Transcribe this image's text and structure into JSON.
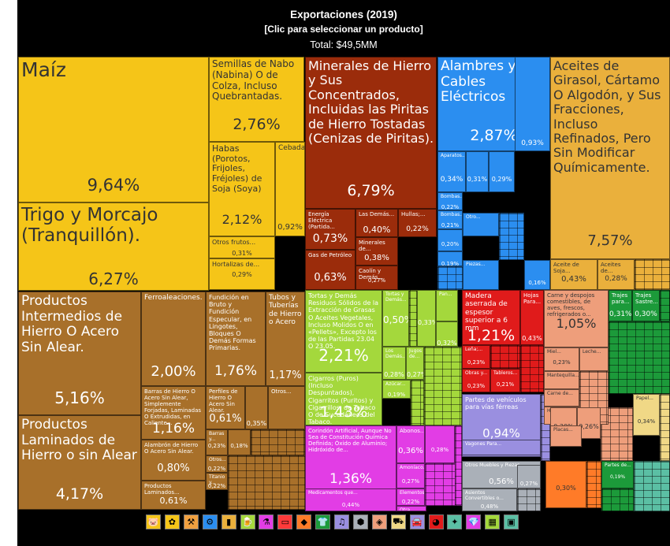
{
  "header": {
    "title": "Exportaciones (2019)",
    "subtitle": "[Clic para seleccionar un producto]",
    "total": "Total: $49,5MM"
  },
  "colors": {
    "vegetal": "#f5c518",
    "metales": "#a8702a",
    "minerales": "#9b2c0b",
    "maquinas": "#2b8ef0",
    "grasas": "#eab03c",
    "alimentos": "#a4d83c",
    "madera": "#e01b1b",
    "animal": "#ee9e7b",
    "quimicos": "#e23de5",
    "transporte": "#9a8fe0",
    "papel": "#f0d886",
    "instrumentos": "#aab0b8",
    "plasticos": "#ff7b28",
    "textiles": "#1c9a3a",
    "calzado": "#2dc57c",
    "otros": "#5bbfa4"
  },
  "chart_data": {
    "type": "treemap",
    "title": "Exportaciones (2019)",
    "subtitle": "[Clic para seleccionar un producto]",
    "total": "Total: $49,5MM",
    "items": [
      {
        "name": "Maíz",
        "value": "9,64%",
        "group": "vegetal"
      },
      {
        "name": "Trigo y Morcajo (Tranquillón).",
        "value": "6,27%",
        "group": "vegetal"
      },
      {
        "name": "Semillas de Nabo (Nabina) O de Colza, Incluso Quebrantadas.",
        "value": "2,76%",
        "group": "vegetal"
      },
      {
        "name": "Habas (Porotos, Frijoles, Fréjoles) de Soja (Soya)",
        "value": "2,12%",
        "group": "vegetal"
      },
      {
        "name": "Cebada.",
        "value": "0,92%",
        "group": "vegetal"
      },
      {
        "name": "Otros frutos...",
        "value": "0,31%",
        "group": "vegetal"
      },
      {
        "name": "Hortalizas de...",
        "value": "0,29%",
        "group": "vegetal"
      },
      {
        "name": "Minerales de Hierro y Sus Concentrados, Incluidas las Piritas de Hierro Tostadas (Cenizas de Piritas).",
        "value": "6,79%",
        "group": "minerales"
      },
      {
        "name": "Energía Eléctrica (Partida...",
        "value": "0,73%",
        "group": "minerales"
      },
      {
        "name": "Las Demás...",
        "value": "0,40%",
        "group": "minerales"
      },
      {
        "name": "Hullas;...",
        "value": "0,22%",
        "group": "minerales"
      },
      {
        "name": "Gas de Petróleo",
        "value": "0,63%",
        "group": "minerales"
      },
      {
        "name": "Minerales de...",
        "value": "0,38%",
        "group": "minerales"
      },
      {
        "name": "Caolín y Demás...",
        "value": "0,27%",
        "group": "minerales"
      },
      {
        "name": "Alambres y Cables Eléctricos",
        "value": "2,87%",
        "group": "maquinas"
      },
      {
        "name": "Aparatos...",
        "value": "0,34%",
        "group": "maquinas"
      },
      {
        "name": "",
        "value": "0,31%",
        "group": "maquinas"
      },
      {
        "name": "",
        "value": "0,29%",
        "group": "maquinas"
      },
      {
        "name": "",
        "value": "0,93%",
        "group": "maquinas"
      },
      {
        "name": "Bombas...",
        "value": "0,22%",
        "group": "maquinas"
      },
      {
        "name": "Bombas...",
        "value": "0,21%",
        "group": "maquinas"
      },
      {
        "name": "Otro...",
        "value": "",
        "group": "maquinas"
      },
      {
        "name": "",
        "value": "0,20%",
        "group": "maquinas"
      },
      {
        "name": "",
        "value": "0,19%",
        "group": "maquinas"
      },
      {
        "name": "Piezas...",
        "value": "",
        "group": "maquinas"
      },
      {
        "name": "",
        "value": "0,16%",
        "group": "maquinas"
      },
      {
        "name": "Aceites de Girasol, Cártamo O Algodón, y Sus Fracciones, Incluso Refinados, Pero Sin Modificar Químicamente.",
        "value": "7,57%",
        "group": "grasas"
      },
      {
        "name": "Aceite de Soja...",
        "value": "0,43%",
        "group": "grasas"
      },
      {
        "name": "Aceites de...",
        "value": "0,28%",
        "group": "grasas"
      },
      {
        "name": "Productos Intermedios de Hierro O Acero Sin Alear.",
        "value": "5,16%",
        "group": "metales"
      },
      {
        "name": "Productos Laminados de Hierro o sin Alear",
        "value": "4,17%",
        "group": "metales"
      },
      {
        "name": "Ferroaleaciones.",
        "value": "2,00%",
        "group": "metales"
      },
      {
        "name": "Fundición en Bruto y Fundición Especular, en Lingotes, Bloques O Demás Formas Primarias.",
        "value": "1,76%",
        "group": "metales"
      },
      {
        "name": "Tubos y Tuberías de Hierro o Acero",
        "value": "1,17%",
        "group": "metales"
      },
      {
        "name": "Barras de Hierro O Acero Sin Alear, Simplemente Forjadas, Laminadas O Extrudidas, en Caliente...",
        "value": "1,16%",
        "group": "metales"
      },
      {
        "name": "Perfiles de Hierro O Acero Sin Alear.",
        "value": "0,61%",
        "group": "metales"
      },
      {
        "name": "",
        "value": "0,35%",
        "group": "metales"
      },
      {
        "name": "Otros...",
        "value": "",
        "group": "metales"
      },
      {
        "name": "Alambrón de Hierro O Acero Sin Alear.",
        "value": "0,80%",
        "group": "metales"
      },
      {
        "name": "Barras y...",
        "value": "0,23%",
        "group": "metales"
      },
      {
        "name": "",
        "value": "0,18%",
        "group": "metales"
      },
      {
        "name": "Otros...",
        "value": "0,22%",
        "group": "metales"
      },
      {
        "name": "Titanio y...",
        "value": "0,22%",
        "group": "metales"
      },
      {
        "name": "Productos Laminados...",
        "value": "0,61%",
        "group": "metales"
      },
      {
        "name": "Tortas y Demás Residuos Sólidos de la Extracción de Grasas O Aceites Vegetales, Incluso Molidos O en «Pellets», Excepto los de las Partidas 23.04 O 23.05.",
        "value": "2,21%",
        "group": "alimentos"
      },
      {
        "name": "Cigarros (Puros) (Incluso Despuntados), Cigarritos (Puritos) y Cigarrillos, de Tabaco O de Sucedáneos del Tabaco.",
        "value": "1,43%",
        "group": "alimentos"
      },
      {
        "name": "Tortas y Demás...",
        "value": "0,50%",
        "group": "alimentos"
      },
      {
        "name": "Pan...",
        "value": "",
        "group": "alimentos"
      },
      {
        "name": "",
        "value": "0,33%",
        "group": "alimentos"
      },
      {
        "name": "",
        "value": "0,32%",
        "group": "alimentos"
      },
      {
        "name": "Los Demás...",
        "value": "0,28%",
        "group": "alimentos"
      },
      {
        "name": "Jugos de...",
        "value": "0,27%",
        "group": "alimentos"
      },
      {
        "name": "Azúcar...",
        "value": "0,19%",
        "group": "alimentos"
      },
      {
        "name": "Madera aserrada de espesor superior a 6 mm",
        "value": "1,21%",
        "group": "madera"
      },
      {
        "name": "Hojas Para...",
        "value": "0,43%",
        "group": "madera"
      },
      {
        "name": "Leña;...",
        "value": "0,23%",
        "group": "madera"
      },
      {
        "name": "Obras y...",
        "value": "0,23%",
        "group": "madera"
      },
      {
        "name": "Tableros...",
        "value": "0,21%",
        "group": "madera"
      },
      {
        "name": "Carne y despojos comestibles, de aves, frescos, refrigerados o...",
        "value": "1,05%",
        "group": "animal"
      },
      {
        "name": "Miel...",
        "value": "0,23%",
        "group": "animal"
      },
      {
        "name": "Leche...",
        "value": "",
        "group": "animal"
      },
      {
        "name": "Mantequilla...",
        "value": "",
        "group": "animal"
      },
      {
        "name": "Carne de...",
        "value": "",
        "group": "animal"
      },
      {
        "name": "Huevos de...",
        "value": "",
        "group": "animal"
      },
      {
        "name": "Trajes para...",
        "value": "0,31%",
        "group": "textiles"
      },
      {
        "name": "Trajes Sastre...",
        "value": "0,30%",
        "group": "textiles"
      },
      {
        "name": "Corindón Artificial, Aunque No Sea de Constitución Química Definida; Óxido de Aluminio; Hidróxido de...",
        "value": "1,36%",
        "group": "quimicos"
      },
      {
        "name": "Abonos...",
        "value": "0,36%",
        "group": "quimicos"
      },
      {
        "name": "",
        "value": "0,28%",
        "group": "quimicos"
      },
      {
        "name": "Amoníaco...",
        "value": "0,27%",
        "group": "quimicos"
      },
      {
        "name": "Elementos...",
        "value": "0,22%",
        "group": "quimicos"
      },
      {
        "name": "Medicamentos que...",
        "value": "0,44%",
        "group": "quimicos"
      },
      {
        "name": "Otra materia...",
        "value": "",
        "group": "quimicos"
      },
      {
        "name": "Partes de vehículos para vías férreas",
        "value": "0,94%",
        "group": "transporte"
      },
      {
        "name": "Vagones Para...",
        "value": "",
        "group": "transporte"
      },
      {
        "name": "",
        "value": "0,30%",
        "group": "animal"
      },
      {
        "name": "",
        "value": "0,26%",
        "group": "animal"
      },
      {
        "name": "Placas...",
        "value": "",
        "group": "animal"
      },
      {
        "name": "Papel...",
        "value": "0,34%",
        "group": "papel"
      },
      {
        "name": "Otros Muebles y Piezas",
        "value": "0,56%",
        "group": "instrumentos"
      },
      {
        "name": "Asientos Convertibles o...",
        "value": "0,48%",
        "group": "instrumentos"
      },
      {
        "name": "",
        "value": "0,27%",
        "group": "instrumentos"
      },
      {
        "name": "",
        "value": "0,30%",
        "group": "plasticos"
      },
      {
        "name": "Partes de...",
        "value": "0,19%",
        "group": "textiles"
      }
    ]
  },
  "legend": [
    {
      "icon": "animal-products-icon",
      "glyph": "🐷",
      "color": "#f5c518"
    },
    {
      "icon": "vegetable-products-icon",
      "glyph": "✿",
      "color": "#f5c518"
    },
    {
      "icon": "mineral-products-icon",
      "glyph": "⚒",
      "color": "#f0a040"
    },
    {
      "icon": "machines-icon",
      "glyph": "⚙",
      "color": "#2b8ef0"
    },
    {
      "icon": "fats-icon",
      "glyph": "▮",
      "color": "#eab03c"
    },
    {
      "icon": "foodstuffs-icon",
      "glyph": "🍺",
      "color": "#a4d83c"
    },
    {
      "icon": "chemicals-icon",
      "glyph": "⚗",
      "color": "#e23de5"
    },
    {
      "icon": "plastics-icon",
      "glyph": "▭",
      "color": "#ff3a3a"
    },
    {
      "icon": "hides-icon",
      "glyph": "◆",
      "color": "#ff7b28"
    },
    {
      "icon": "textiles-icon",
      "glyph": "👕",
      "color": "#1c9a3a"
    },
    {
      "icon": "footwear-icon",
      "glyph": "♫",
      "color": "#9a8fe0"
    },
    {
      "icon": "stone-icon",
      "glyph": "⬢",
      "color": "#aab0b8"
    },
    {
      "icon": "metals-icon",
      "glyph": "◈",
      "color": "#ee9e7b"
    },
    {
      "icon": "transport-icon",
      "glyph": "⛟",
      "color": "#f0d886"
    },
    {
      "icon": "vehicles-icon",
      "glyph": "🚘",
      "color": "#9a8fe0"
    },
    {
      "icon": "instruments-icon",
      "glyph": "◕",
      "color": "#e01b1b"
    },
    {
      "icon": "weapons-icon",
      "glyph": "✦",
      "color": "#5bbfa4"
    },
    {
      "icon": "gems-icon",
      "glyph": "💎",
      "color": "#e23de5"
    },
    {
      "icon": "arts-icon",
      "glyph": "▦",
      "color": "#a4d83c"
    },
    {
      "icon": "misc-icon",
      "glyph": "▣",
      "color": "#5bbfa4"
    }
  ]
}
